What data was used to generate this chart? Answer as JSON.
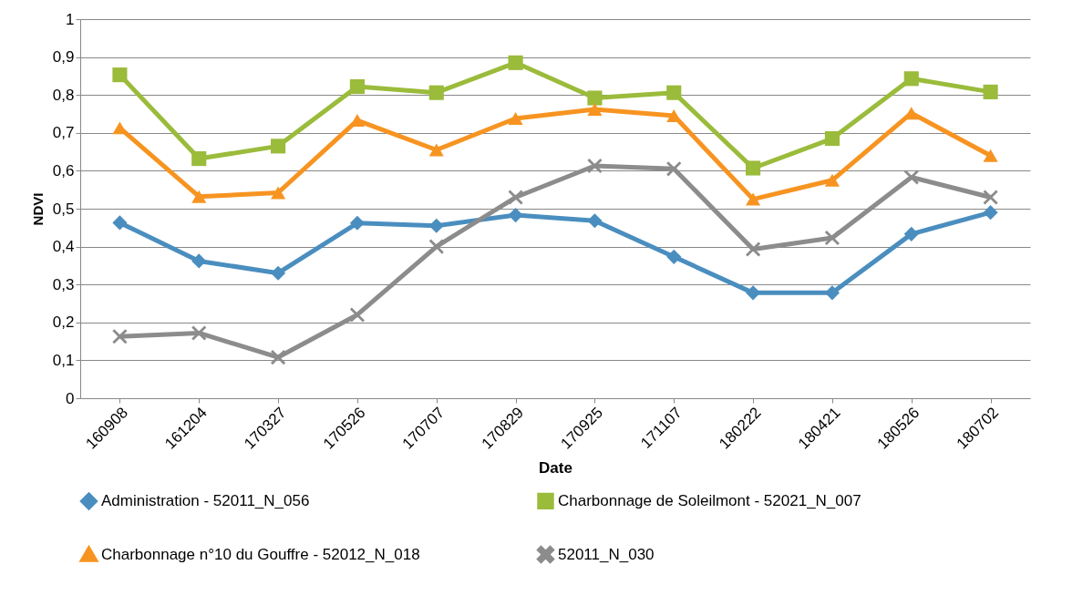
{
  "chart_data": {
    "type": "line",
    "xlabel": "Date",
    "ylabel": "NDVI",
    "categories": [
      "160908",
      "161204",
      "170327",
      "170526",
      "170707",
      "170829",
      "170925",
      "171107",
      "180222",
      "180421",
      "180526",
      "180702"
    ],
    "series": [
      {
        "name": "Administration - 52011_N_056",
        "color": "#4a8ebf",
        "marker": "diamond",
        "values": [
          0.463,
          0.362,
          0.33,
          0.462,
          0.455,
          0.483,
          0.468,
          0.373,
          0.278,
          0.278,
          0.433,
          0.49
        ]
      },
      {
        "name": "Charbonnage de Soleilmont - 52021_N_007",
        "color": "#9bbb3b",
        "marker": "square",
        "values": [
          0.853,
          0.632,
          0.665,
          0.822,
          0.806,
          0.885,
          0.792,
          0.806,
          0.607,
          0.685,
          0.843,
          0.808
        ]
      },
      {
        "name": "Charbonnage n°10 du Gouffre - 52012_N_018",
        "color": "#f79421",
        "marker": "triangle",
        "values": [
          0.713,
          0.532,
          0.542,
          0.733,
          0.655,
          0.738,
          0.762,
          0.745,
          0.525,
          0.575,
          0.752,
          0.64
        ]
      },
      {
        "name": "52011_N_030",
        "color": "#8c8c8c",
        "marker": "cross",
        "values": [
          0.163,
          0.172,
          0.108,
          0.22,
          0.4,
          0.53,
          0.613,
          0.605,
          0.393,
          0.423,
          0.583,
          0.53
        ]
      }
    ],
    "ylim": [
      0,
      1
    ],
    "yticks": [
      0,
      {
        "value": 0.1,
        "label": "0,1"
      },
      {
        "value": 0.2,
        "label": "0,2"
      },
      {
        "value": 0.3,
        "label": "0,3"
      },
      {
        "value": 0.4,
        "label": "0,4"
      },
      {
        "value": 0.5,
        "label": "0,5"
      },
      {
        "value": 0.6,
        "label": "0,6"
      },
      {
        "value": 0.7,
        "label": "0,7"
      },
      {
        "value": 0.8,
        "label": "0,8"
      },
      {
        "value": 0.9,
        "label": "0,9"
      },
      1
    ],
    "grid": "y",
    "legend": "bottom"
  }
}
